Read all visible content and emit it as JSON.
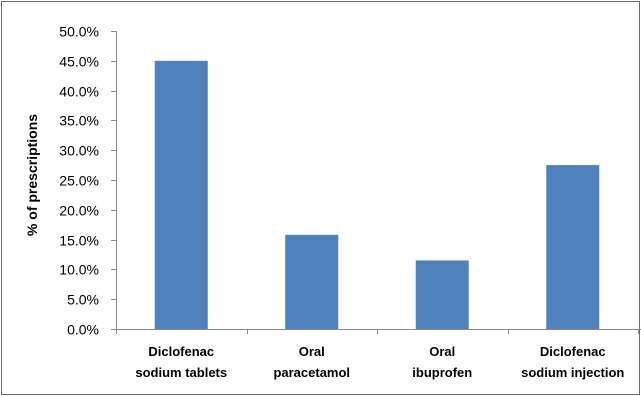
{
  "chart_data": {
    "type": "bar",
    "categories": [
      [
        "Diclofenac",
        "sodium tablets"
      ],
      [
        "Oral",
        "paracetamol"
      ],
      [
        "Oral",
        "ibuprofen"
      ],
      [
        "Diclofenac",
        "sodium injection"
      ]
    ],
    "values": [
      45.0,
      15.8,
      11.5,
      27.5
    ],
    "ylabel": "% of prescriptions",
    "ylim": [
      0,
      50
    ],
    "yticks": [
      "0.0%",
      "5.0%",
      "10.0%",
      "15.0%",
      "20.0%",
      "25.0%",
      "30.0%",
      "35.0%",
      "40.0%",
      "45.0%",
      "50.0%"
    ],
    "grid": false,
    "legend": "none",
    "bar_color": "#4F81BD"
  }
}
